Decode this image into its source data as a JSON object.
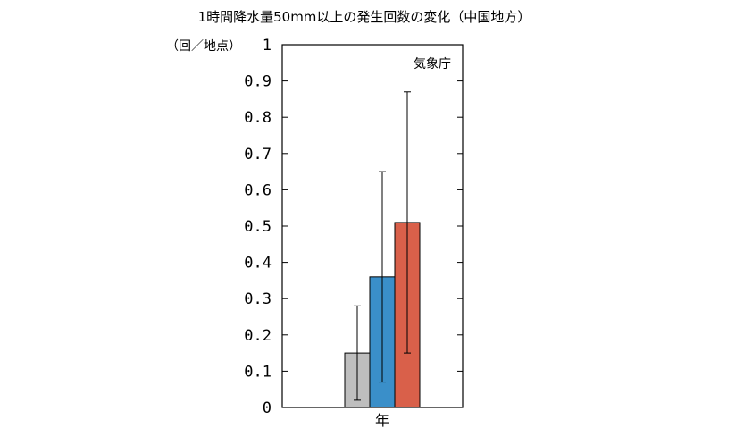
{
  "chart_data": {
    "type": "bar",
    "title": "1時間降水量50mm以上の発生回数の変化（中国地方）",
    "ylabel": "（回／地点）",
    "xlabel": "年",
    "source": "気象庁",
    "ylim": [
      0,
      1
    ],
    "yticks": [
      "0",
      "0.1",
      "0.2",
      "0.3",
      "0.4",
      "0.5",
      "0.6",
      "0.7",
      "0.8",
      "0.9",
      "1"
    ],
    "grid": false,
    "legend": "none",
    "bars": [
      {
        "value": 0.15,
        "error_low": 0.02,
        "error_high": 0.28,
        "color": "#bebebe"
      },
      {
        "value": 0.36,
        "error_low": 0.07,
        "error_high": 0.65,
        "color": "#3a8fc9"
      },
      {
        "value": 0.51,
        "error_low": 0.15,
        "error_high": 0.87,
        "color": "#d9604a"
      }
    ]
  }
}
